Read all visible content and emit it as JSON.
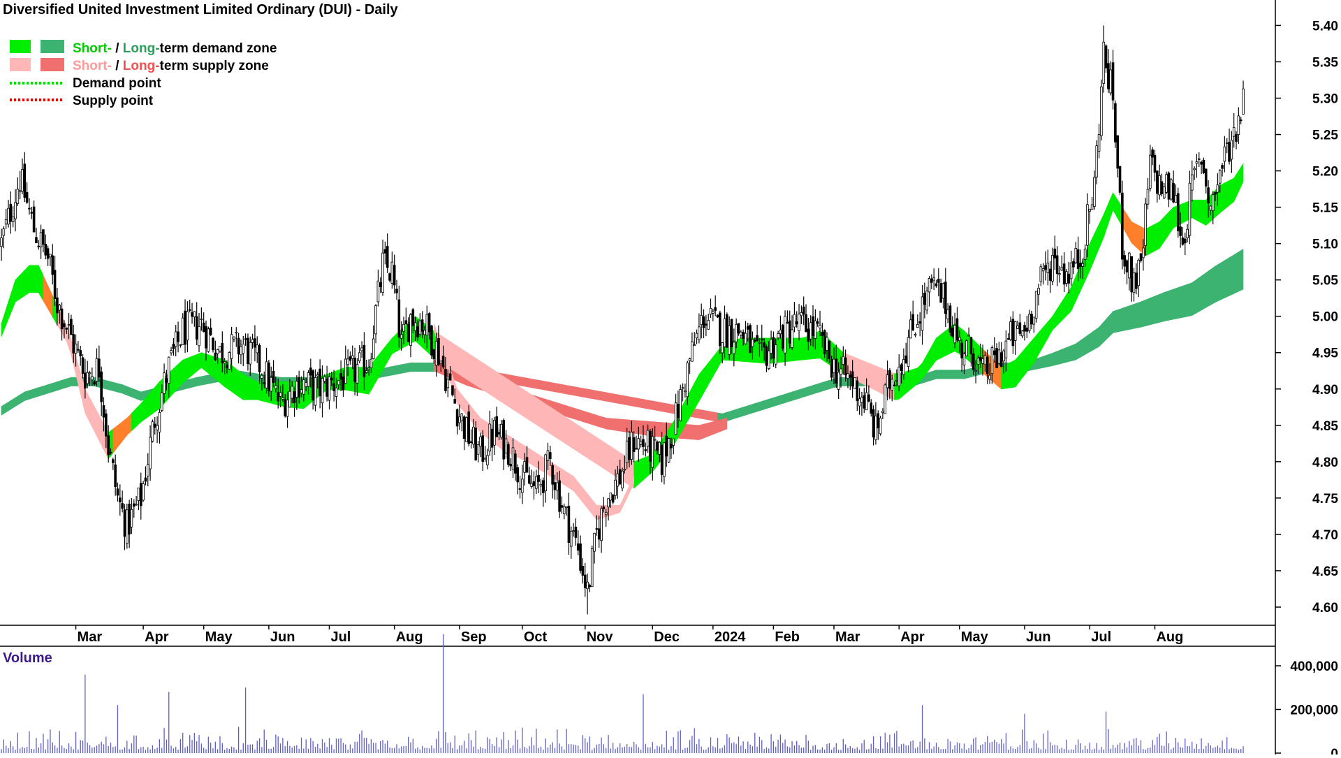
{
  "chart_data": {
    "type": "candlestick",
    "title": "Diversified United Investment Limited Ordinary (DUI) - Daily",
    "legend": {
      "placement": "top-left",
      "entries": [
        {
          "prefix": "Short-",
          "sep": " / ",
          "mid": "Long-",
          "suffix": "term demand zone",
          "short_color": "#00ee00",
          "long_color": "#3cb371"
        },
        {
          "prefix": "Short-",
          "sep": " / ",
          "mid": "Long-",
          "suffix": "term supply zone",
          "short_color": "#ffb6b6",
          "long_color": "#f07070"
        },
        {
          "label": "Demand point",
          "color": "#00dd00",
          "style": "dotted"
        },
        {
          "label": "Supply point",
          "color": "#dd0000",
          "style": "dotted"
        }
      ]
    },
    "y_axis": {
      "position": "right",
      "ticks": [
        "5.40",
        "5.35",
        "5.30",
        "5.25",
        "5.20",
        "5.15",
        "5.10",
        "5.05",
        "5.00",
        "4.95",
        "4.90",
        "4.85",
        "4.80",
        "4.75",
        "4.70",
        "4.65",
        "4.60"
      ],
      "ylim": [
        4.575,
        5.435
      ]
    },
    "x_axis": {
      "months": [
        "Mar",
        "Apr",
        "May",
        "Jun",
        "Jul",
        "Aug",
        "Sep",
        "Oct",
        "Nov",
        "Dec",
        "2024",
        "Feb",
        "Mar",
        "Apr",
        "May",
        "Jun",
        "Jul",
        "Aug"
      ]
    },
    "grid": false,
    "price_anchors": [
      [
        0,
        5.1
      ],
      [
        8,
        5.19
      ],
      [
        14,
        5.12
      ],
      [
        20,
        5.08
      ],
      [
        24,
        5.02
      ],
      [
        30,
        4.97
      ],
      [
        36,
        4.92
      ],
      [
        42,
        4.93
      ],
      [
        46,
        4.82
      ],
      [
        50,
        4.75
      ],
      [
        54,
        4.71
      ],
      [
        60,
        4.75
      ],
      [
        66,
        4.86
      ],
      [
        72,
        4.93
      ],
      [
        78,
        4.98
      ],
      [
        86,
        4.99
      ],
      [
        94,
        4.95
      ],
      [
        104,
        4.96
      ],
      [
        112,
        4.93
      ],
      [
        120,
        4.88
      ],
      [
        128,
        4.91
      ],
      [
        136,
        4.9
      ],
      [
        144,
        4.91
      ],
      [
        150,
        4.92
      ],
      [
        158,
        4.94
      ],
      [
        164,
        5.07
      ],
      [
        168,
        5.06
      ],
      [
        172,
        4.96
      ],
      [
        176,
        5.0
      ],
      [
        182,
        4.99
      ],
      [
        188,
        4.95
      ],
      [
        194,
        4.89
      ],
      [
        200,
        4.84
      ],
      [
        206,
        4.81
      ],
      [
        212,
        4.84
      ],
      [
        218,
        4.82
      ],
      [
        224,
        4.78
      ],
      [
        230,
        4.76
      ],
      [
        236,
        4.8
      ],
      [
        242,
        4.73
      ],
      [
        248,
        4.68
      ],
      [
        252,
        4.62
      ],
      [
        256,
        4.7
      ],
      [
        260,
        4.75
      ],
      [
        266,
        4.78
      ],
      [
        272,
        4.83
      ],
      [
        278,
        4.82
      ],
      [
        284,
        4.8
      ],
      [
        290,
        4.86
      ],
      [
        296,
        4.94
      ],
      [
        302,
        5.0
      ],
      [
        310,
        4.98
      ],
      [
        318,
        4.98
      ],
      [
        326,
        4.94
      ],
      [
        334,
        4.97
      ],
      [
        342,
        4.99
      ],
      [
        350,
        4.98
      ],
      [
        358,
        4.93
      ],
      [
        366,
        4.91
      ],
      [
        372,
        4.88
      ],
      [
        376,
        4.84
      ],
      [
        382,
        4.91
      ],
      [
        388,
        4.95
      ],
      [
        394,
        5.0
      ],
      [
        400,
        5.04
      ],
      [
        406,
        5.02
      ],
      [
        412,
        4.96
      ],
      [
        418,
        4.95
      ],
      [
        422,
        4.92
      ],
      [
        428,
        4.94
      ],
      [
        434,
        4.97
      ],
      [
        440,
        4.98
      ],
      [
        446,
        5.04
      ],
      [
        452,
        5.08
      ],
      [
        458,
        5.06
      ],
      [
        464,
        5.08
      ],
      [
        470,
        5.18
      ],
      [
        474,
        5.36
      ],
      [
        478,
        5.3
      ],
      [
        482,
        5.1
      ],
      [
        486,
        5.05
      ],
      [
        490,
        5.06
      ],
      [
        494,
        5.21
      ],
      [
        498,
        5.18
      ],
      [
        504,
        5.17
      ],
      [
        508,
        5.1
      ],
      [
        512,
        5.18
      ],
      [
        516,
        5.22
      ],
      [
        520,
        5.15
      ],
      [
        526,
        5.22
      ],
      [
        530,
        5.25
      ],
      [
        534,
        5.3
      ]
    ],
    "demand_short": [
      [
        0,
        4.99
      ],
      [
        6,
        5.05
      ],
      [
        12,
        5.07
      ],
      [
        16,
        5.07
      ],
      [
        29,
        4.98
      ],
      [
        36,
        4.9
      ],
      [
        46,
        4.84
      ],
      [
        54,
        4.86
      ],
      [
        60,
        4.88
      ],
      [
        68,
        4.91
      ],
      [
        78,
        4.94
      ],
      [
        86,
        4.95
      ],
      [
        96,
        4.94
      ],
      [
        104,
        4.92
      ],
      [
        110,
        4.91
      ],
      [
        122,
        4.91
      ],
      [
        130,
        4.91
      ],
      [
        140,
        4.92
      ],
      [
        148,
        4.93
      ],
      [
        158,
        4.93
      ],
      [
        168,
        4.97
      ],
      [
        178,
        5.0
      ],
      [
        186,
        4.98
      ],
      [
        272,
        4.8
      ],
      [
        280,
        4.81
      ],
      [
        290,
        4.86
      ],
      [
        300,
        4.92
      ],
      [
        310,
        4.96
      ],
      [
        318,
        4.97
      ],
      [
        330,
        4.97
      ],
      [
        345,
        4.97
      ],
      [
        352,
        4.98
      ],
      [
        362,
        4.95
      ],
      [
        385,
        4.92
      ],
      [
        395,
        4.93
      ],
      [
        402,
        4.97
      ],
      [
        410,
        4.99
      ],
      [
        414,
        4.98
      ],
      [
        430,
        4.93
      ],
      [
        436,
        4.94
      ],
      [
        444,
        4.97
      ],
      [
        452,
        5.0
      ],
      [
        460,
        5.04
      ],
      [
        468,
        5.1
      ],
      [
        474,
        5.14
      ],
      [
        478,
        5.17
      ],
      [
        486,
        5.13
      ],
      [
        492,
        5.12
      ],
      [
        498,
        5.13
      ],
      [
        504,
        5.15
      ],
      [
        512,
        5.16
      ],
      [
        518,
        5.16
      ],
      [
        524,
        5.18
      ],
      [
        530,
        5.19
      ],
      [
        534,
        5.21
      ]
    ],
    "demand_long": [
      [
        0,
        4.87
      ],
      [
        10,
        4.89
      ],
      [
        20,
        4.9
      ],
      [
        30,
        4.91
      ],
      [
        40,
        4.91
      ],
      [
        52,
        4.9
      ],
      [
        60,
        4.89
      ],
      [
        72,
        4.9
      ],
      [
        84,
        4.91
      ],
      [
        100,
        4.92
      ],
      [
        120,
        4.91
      ],
      [
        140,
        4.91
      ],
      [
        160,
        4.92
      ],
      [
        176,
        4.93
      ],
      [
        190,
        4.93
      ],
      [
        310,
        4.86
      ],
      [
        320,
        4.87
      ],
      [
        330,
        4.88
      ],
      [
        340,
        4.89
      ],
      [
        350,
        4.9
      ],
      [
        360,
        4.91
      ],
      [
        372,
        4.91
      ],
      [
        382,
        4.91
      ],
      [
        392,
        4.91
      ],
      [
        402,
        4.92
      ],
      [
        414,
        4.92
      ],
      [
        426,
        4.93
      ],
      [
        440,
        4.93
      ],
      [
        452,
        4.94
      ],
      [
        462,
        4.95
      ],
      [
        472,
        4.97
      ],
      [
        478,
        4.99
      ],
      [
        490,
        5.0
      ],
      [
        500,
        5.01
      ],
      [
        512,
        5.02
      ],
      [
        522,
        5.04
      ],
      [
        534,
        5.06
      ]
    ],
    "volume": {
      "title": "Volume",
      "ticks": [
        "400,000",
        "200,000",
        "0"
      ],
      "ylim": [
        0,
        480000
      ],
      "spikes": [
        [
          36,
          360000
        ],
        [
          190,
          545000
        ],
        [
          276,
          270000
        ],
        [
          72,
          280000
        ],
        [
          105,
          300000
        ],
        [
          50,
          220000
        ],
        [
          396,
          220000
        ],
        [
          475,
          190000
        ],
        [
          440,
          180000
        ]
      ]
    }
  }
}
